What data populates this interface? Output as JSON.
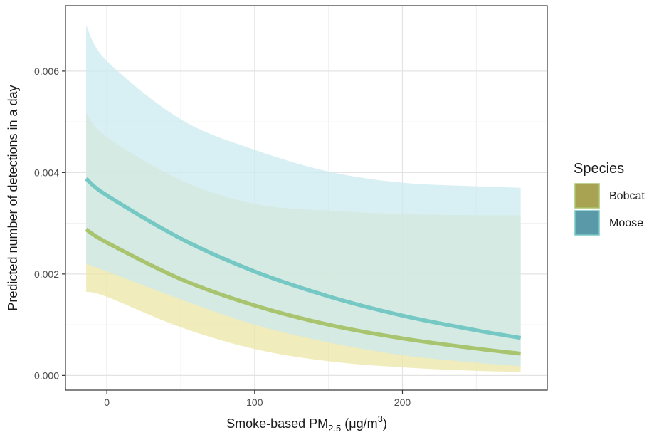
{
  "chart_data": {
    "type": "line",
    "title": "",
    "xlabel": {
      "main": "Smoke-based PM",
      "sub": "2.5",
      "unit_open": " (",
      "unit_mu": "μg/m",
      "unit_sup": "3",
      "unit_close": ")"
    },
    "ylabel": "Predicted number of detections in a day",
    "xlim": [
      -28,
      298
    ],
    "ylim": [
      -0.00029,
      0.00729
    ],
    "xticks": [
      0,
      100,
      200
    ],
    "xtick_labels": [
      "0",
      "100",
      "200"
    ],
    "yticks": [
      0.0,
      0.002,
      0.004,
      0.006
    ],
    "ytick_labels": [
      "0.000",
      "0.002",
      "0.004",
      "0.006"
    ],
    "grid": true,
    "legend": {
      "title": "Species",
      "position": "right"
    },
    "x": [
      -14,
      0,
      50,
      100,
      150,
      200,
      250,
      280
    ],
    "series": [
      {
        "name": "Bobcat",
        "color": "#a8a253",
        "line_color": "#a9c46e",
        "ribbon_color": "#ece6a6",
        "values": [
          0.00288,
          0.00262,
          0.0019,
          0.00138,
          0.001,
          0.00073,
          0.00053,
          0.00043
        ],
        "lower": [
          0.00165,
          0.00155,
          0.00095,
          0.00052,
          0.00028,
          0.00016,
          9e-05,
          7e-05
        ],
        "upper": [
          0.00518,
          0.0047,
          0.00385,
          0.00338,
          0.00325,
          0.00318,
          0.00316,
          0.00316
        ]
      },
      {
        "name": "Moose",
        "color": "#5a9aa8",
        "line_color": "#75c8c4",
        "ribbon_color": "#cbe9ef",
        "values": [
          0.00388,
          0.00355,
          0.0027,
          0.00205,
          0.00156,
          0.00118,
          0.00089,
          0.00074
        ],
        "lower": [
          0.0022,
          0.00205,
          0.0015,
          0.001,
          0.00065,
          0.0004,
          0.00025,
          0.00018
        ],
        "upper": [
          0.0069,
          0.0062,
          0.00505,
          0.00445,
          0.00402,
          0.0038,
          0.00373,
          0.0037
        ]
      }
    ]
  }
}
